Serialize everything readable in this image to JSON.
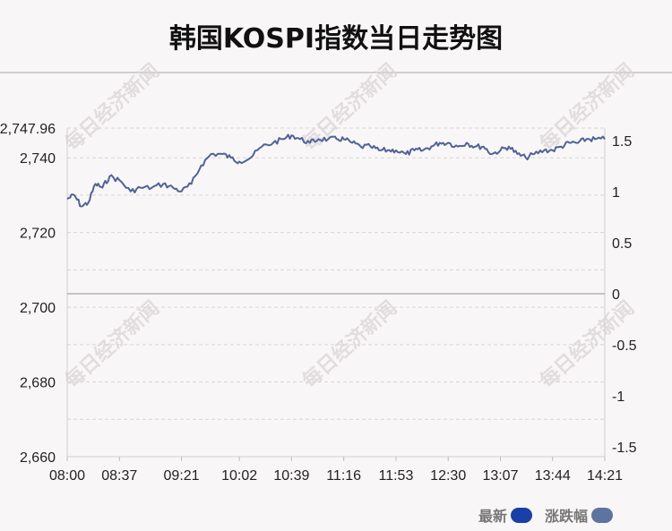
{
  "title": "韩国KOSPI指数当日走势图",
  "watermark": "每日经济新闻",
  "colors": {
    "line": "#4f6496",
    "latest_swatch": "#1a3fa6",
    "change_swatch": "#5e739f",
    "grid": "#d6d6d6",
    "zero_line": "#c4c4c4"
  },
  "legend": {
    "latest": "最新",
    "change": "涨跌幅"
  },
  "chart_data": {
    "type": "line",
    "title": "韩国KOSPI指数当日走势图",
    "x_ticks": [
      "08:00",
      "08:37",
      "09:21",
      "10:02",
      "10:39",
      "11:16",
      "11:53",
      "12:30",
      "13:07",
      "13:44",
      "14:21"
    ],
    "left_axis": {
      "ylim": [
        2660,
        2747.96
      ],
      "ticks": [
        "2,747.96",
        "2,740",
        "2,720",
        "2,700",
        "2,680",
        "2,660"
      ]
    },
    "right_axis": {
      "ylim": [
        -1.5,
        1.5
      ],
      "ticks": [
        "1.5",
        "1",
        "0.5",
        "0",
        "-0.5",
        "-1",
        "-1.5"
      ]
    },
    "grid": true,
    "legend_position": "bottom-right",
    "series": [
      {
        "name": "最新",
        "x": [
          "08:00",
          "08:05",
          "08:10",
          "08:15",
          "08:20",
          "08:25",
          "08:30",
          "08:37",
          "08:45",
          "08:52",
          "09:00",
          "09:08",
          "09:15",
          "09:21",
          "09:28",
          "09:35",
          "09:42",
          "09:50",
          "09:56",
          "10:02",
          "10:10",
          "10:18",
          "10:26",
          "10:33",
          "10:39",
          "10:45",
          "10:52",
          "10:58",
          "11:05",
          "11:11",
          "11:16",
          "11:22",
          "11:28",
          "11:35",
          "11:41",
          "11:47",
          "11:53",
          "12:00",
          "12:06",
          "12:12",
          "12:18",
          "12:24",
          "12:30",
          "12:37",
          "12:43",
          "12:49",
          "12:55",
          "13:01",
          "13:07",
          "13:13",
          "13:19",
          "13:25",
          "13:31",
          "13:38",
          "13:44",
          "13:50",
          "13:56",
          "14:02",
          "14:08",
          "14:14",
          "14:21"
        ],
        "y": [
          2729,
          2730,
          2727,
          2728,
          2733,
          2732,
          2735,
          2734,
          2731,
          2732,
          2732,
          2733,
          2732,
          2731,
          2733,
          2738,
          2741,
          2741,
          2740,
          2739,
          2740,
          2743,
          2744,
          2745,
          2746,
          2745,
          2744,
          2745,
          2745,
          2745,
          2745,
          2744,
          2743,
          2743,
          2742,
          2742,
          2742,
          2741,
          2742,
          2742,
          2743,
          2744,
          2744,
          2743,
          2744,
          2743,
          2743,
          2741,
          2742,
          2743,
          2741,
          2740,
          2741,
          2742,
          2742,
          2743,
          2744,
          2744,
          2745,
          2745,
          2745
        ]
      }
    ]
  }
}
